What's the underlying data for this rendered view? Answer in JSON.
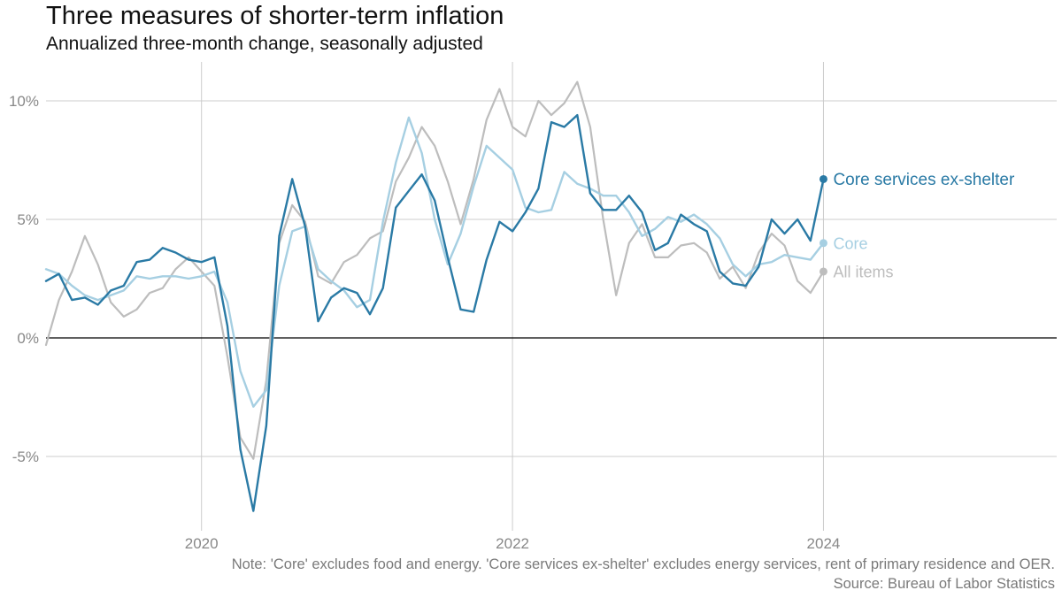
{
  "title": "Three measures of shorter-term inflation",
  "subtitle": "Annualized three-month change, seasonally adjusted",
  "note": "Note: 'Core' excludes food and energy. 'Core services ex-shelter' excludes energy services, rent of primary residence and OER.",
  "source": "Source: Bureau of Labor Statistics",
  "colors": {
    "core_services": "#2a7aa5",
    "core": "#a6cfe2",
    "all_items": "#bdbdbd",
    "grid": "#cccccc",
    "zero_line": "#000000",
    "tick_text": "#888888"
  },
  "chart_data": {
    "type": "line",
    "xlim": [
      "2019-01",
      "2025-07"
    ],
    "ylim": [
      -8,
      11
    ],
    "x_ticks": [
      "2020",
      "2022",
      "2024"
    ],
    "y_ticks": [
      "10%",
      "5%",
      "0%",
      "-5%"
    ],
    "y_tick_values": [
      10,
      5,
      0,
      -5
    ],
    "grid": true,
    "legend": "direct labels at line ends",
    "x": [
      "2019-01",
      "2019-02",
      "2019-03",
      "2019-04",
      "2019-05",
      "2019-06",
      "2019-07",
      "2019-08",
      "2019-09",
      "2019-10",
      "2019-11",
      "2019-12",
      "2020-01",
      "2020-02",
      "2020-03",
      "2020-04",
      "2020-05",
      "2020-06",
      "2020-07",
      "2020-08",
      "2020-09",
      "2020-10",
      "2020-11",
      "2020-12",
      "2021-01",
      "2021-02",
      "2021-03",
      "2021-04",
      "2021-05",
      "2021-06",
      "2021-07",
      "2021-08",
      "2021-09",
      "2021-10",
      "2021-11",
      "2021-12",
      "2022-01",
      "2022-02",
      "2022-03",
      "2022-04",
      "2022-05",
      "2022-06",
      "2022-07",
      "2022-08",
      "2022-09",
      "2022-10",
      "2022-11",
      "2022-12",
      "2023-01",
      "2023-02",
      "2023-03",
      "2023-04",
      "2023-05",
      "2023-06",
      "2023-07",
      "2023-08",
      "2023-09",
      "2023-10",
      "2023-11",
      "2023-12",
      "2024-01"
    ],
    "series": [
      {
        "name": "All items",
        "values": [
          -0.3,
          1.6,
          2.8,
          4.3,
          3.1,
          1.5,
          0.9,
          1.2,
          1.9,
          2.1,
          2.9,
          3.4,
          2.8,
          2.2,
          -0.8,
          -4.2,
          -5.1,
          -1.8,
          4.0,
          5.6,
          4.9,
          2.6,
          2.3,
          3.2,
          3.5,
          4.2,
          4.5,
          6.6,
          7.6,
          8.9,
          8.1,
          6.6,
          4.8,
          6.7,
          9.2,
          10.5,
          8.9,
          8.5,
          10.0,
          9.4,
          9.9,
          10.8,
          8.9,
          5.0,
          1.8,
          4.0,
          4.8,
          3.4,
          3.4,
          3.9,
          4.0,
          3.6,
          2.5,
          3.0,
          2.1,
          3.6,
          4.4,
          3.9,
          2.4,
          1.9,
          2.8
        ]
      },
      {
        "name": "Core",
        "values": [
          2.9,
          2.7,
          2.2,
          1.8,
          1.6,
          1.8,
          2.0,
          2.6,
          2.5,
          2.6,
          2.6,
          2.5,
          2.6,
          2.8,
          1.5,
          -1.4,
          -2.9,
          -2.2,
          2.2,
          4.5,
          4.7,
          2.9,
          2.4,
          2.0,
          1.3,
          1.6,
          4.9,
          7.4,
          9.3,
          7.8,
          5.0,
          3.1,
          4.4,
          6.4,
          8.1,
          7.6,
          7.1,
          5.5,
          5.3,
          5.4,
          7.0,
          6.5,
          6.3,
          6.0,
          6.0,
          5.3,
          4.3,
          4.6,
          5.1,
          4.9,
          5.2,
          4.8,
          4.2,
          3.1,
          2.6,
          3.1,
          3.2,
          3.5,
          3.4,
          3.3,
          4.0
        ]
      },
      {
        "name": "Core services ex-shelter",
        "values": [
          2.4,
          2.7,
          1.6,
          1.7,
          1.4,
          2.0,
          2.2,
          3.2,
          3.3,
          3.8,
          3.6,
          3.3,
          3.2,
          3.4,
          0.5,
          -4.7,
          -7.3,
          -3.7,
          4.3,
          6.7,
          4.7,
          0.7,
          1.7,
          2.1,
          1.9,
          1.0,
          2.1,
          5.5,
          6.2,
          6.9,
          5.8,
          3.4,
          1.2,
          1.1,
          3.3,
          4.9,
          4.5,
          5.3,
          6.3,
          9.1,
          8.9,
          9.4,
          6.1,
          5.4,
          5.4,
          6.0,
          5.3,
          3.7,
          4.0,
          5.2,
          4.8,
          4.5,
          2.8,
          2.3,
          2.2,
          3.0,
          5.0,
          4.4,
          5.0,
          4.1,
          6.7
        ]
      }
    ]
  }
}
